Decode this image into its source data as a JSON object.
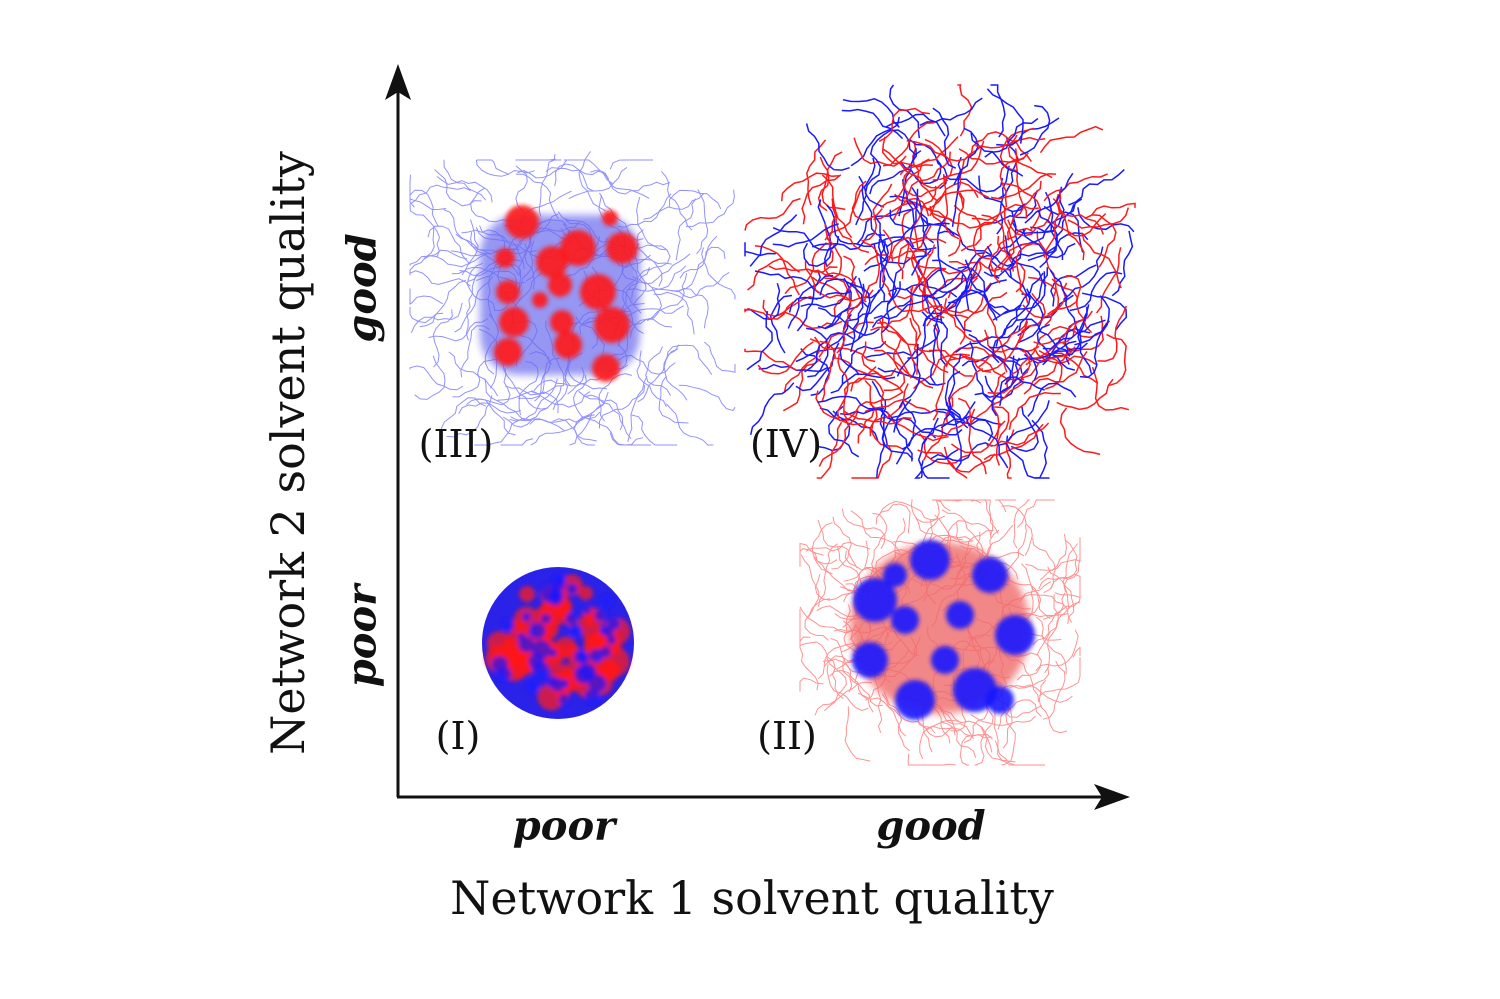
{
  "figure": {
    "x_axis": {
      "title": "Network 1 solvent quality",
      "ticks": [
        "poor",
        "good"
      ]
    },
    "y_axis": {
      "title": "Network 2 solvent quality",
      "ticks": [
        "poor",
        "good"
      ]
    },
    "panels": [
      {
        "label": "(I)",
        "x_quality": "poor",
        "y_quality": "poor",
        "state": "collapsed-mixed"
      },
      {
        "label": "(II)",
        "x_quality": "good",
        "y_quality": "poor",
        "state": "blue-domains-red-corona"
      },
      {
        "label": "(III)",
        "x_quality": "poor",
        "y_quality": "good",
        "state": "red-domains-blue-corona"
      },
      {
        "label": "(IV)",
        "x_quality": "good",
        "y_quality": "good",
        "state": "swollen"
      }
    ],
    "colors": {
      "network_1": "#ff1a1a",
      "network_2": "#1a1aff",
      "axis": "#111111"
    }
  }
}
